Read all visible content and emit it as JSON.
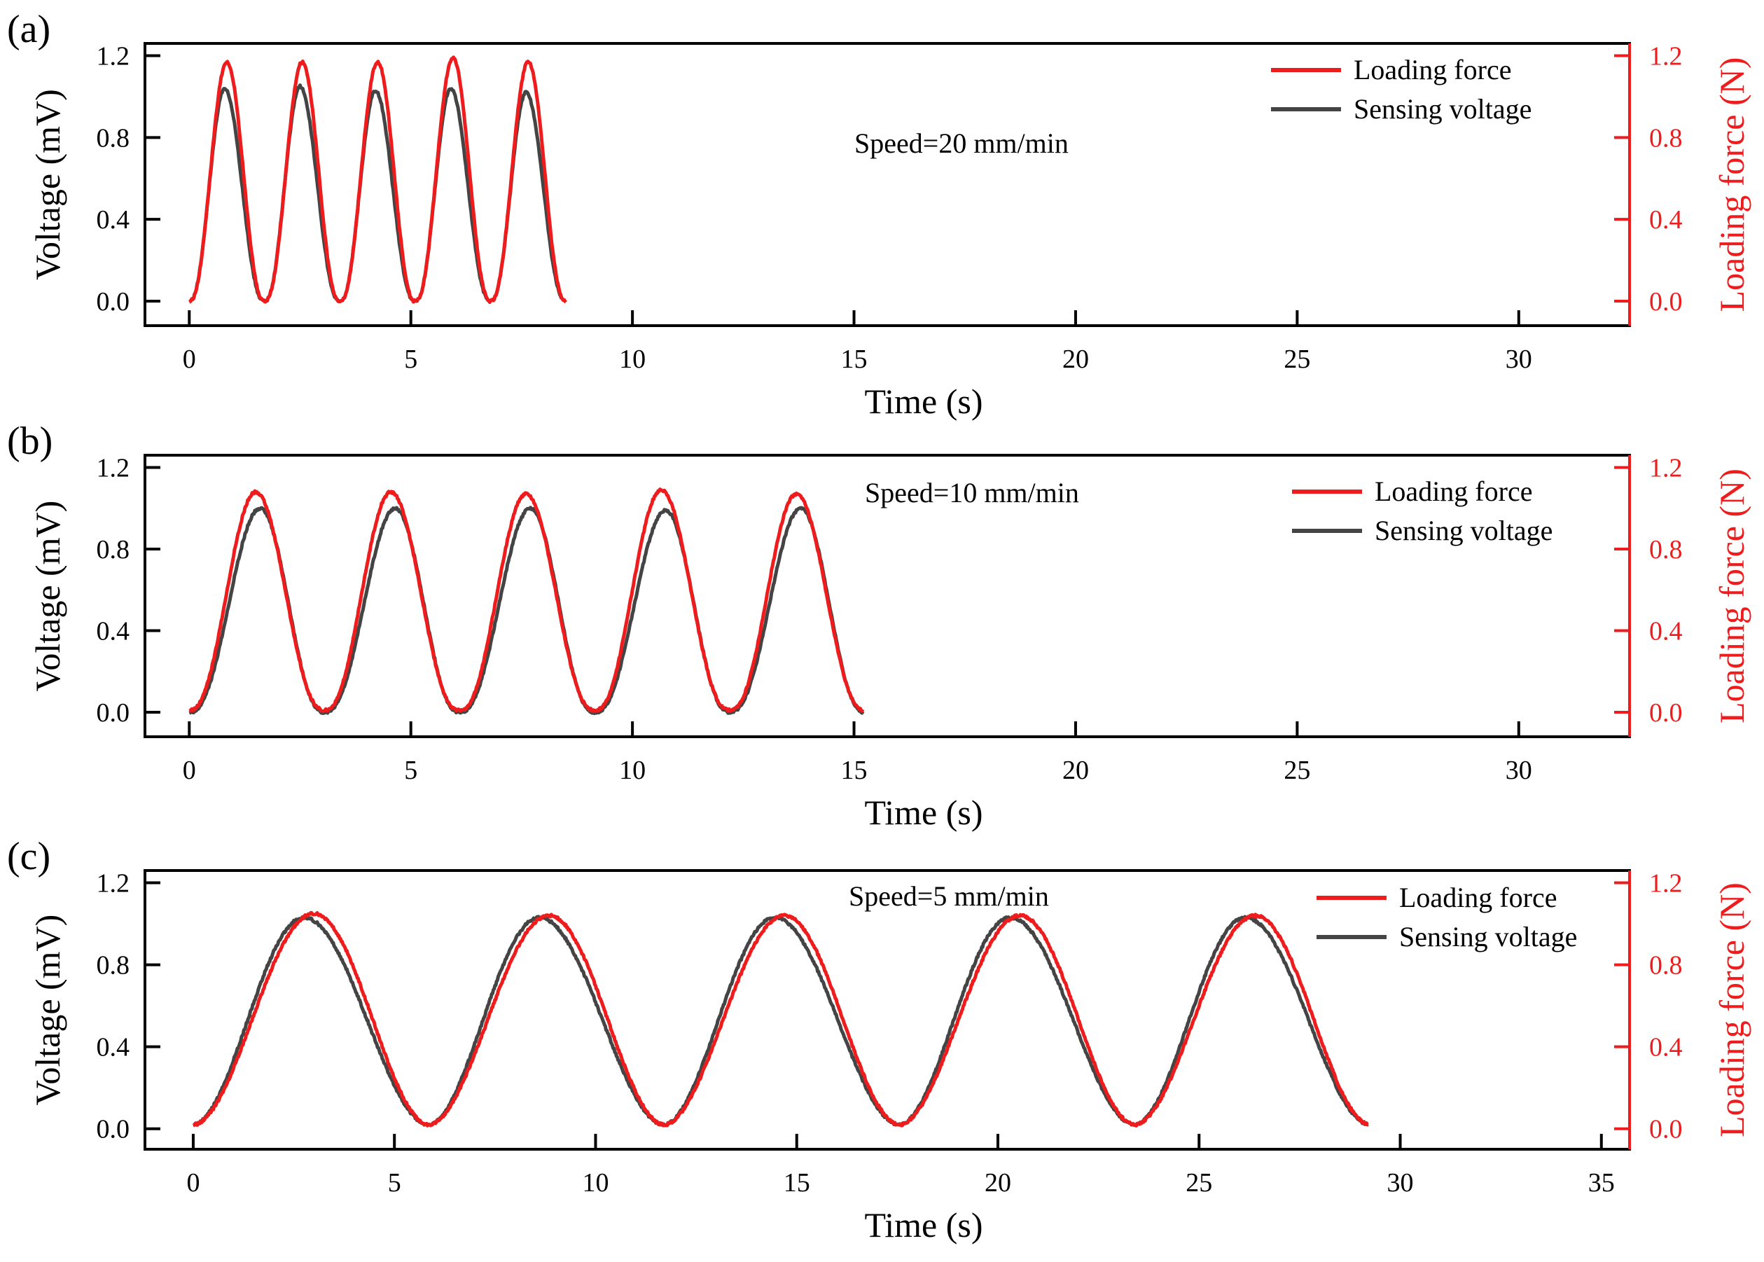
{
  "colors": {
    "loading": "#ee1c1c",
    "sensing": "#444444",
    "axis": "#000000"
  },
  "chart_data": [
    {
      "type": "line",
      "panel_label": "(a)",
      "annotation": "Speed=20  mm/min",
      "xlabel": "Time (s)",
      "ylabel": "Voltage (mV)",
      "y2label": "Loading force (N)",
      "xlim": [
        -1,
        32.5
      ],
      "ylim": [
        -0.12,
        1.26
      ],
      "xticks": [
        0,
        5,
        10,
        15,
        20,
        25,
        30
      ],
      "xtick_labels": [
        "0",
        "5",
        "10",
        "15",
        "20",
        "25",
        "30"
      ],
      "yticks": [
        0.0,
        0.4,
        0.8,
        1.2
      ],
      "ytick_labels": [
        "0.0",
        "0.4",
        "0.8",
        "1.2"
      ],
      "y2ticks": [
        0.0,
        0.4,
        0.8,
        1.2
      ],
      "y2tick_labels": [
        "0.0",
        "0.4",
        "0.8",
        "1.2"
      ],
      "legend_position": "top-right",
      "series": [
        {
          "name": "Loading force",
          "axis": "right",
          "start": 0.0,
          "end": 8.5,
          "period": 1.7,
          "peak_offset": 0.85,
          "peaks": [
            1.17,
            1.17,
            1.17,
            1.19,
            1.17
          ],
          "base": 0.0,
          "shape": 1.5
        },
        {
          "name": "Sensing voltage",
          "axis": "left",
          "start": 0.0,
          "end": 8.4,
          "period": 1.7,
          "peak_offset": 0.8,
          "peaks": [
            1.04,
            1.05,
            1.03,
            1.04,
            1.02
          ],
          "base": 0.0,
          "shape": 1.5
        }
      ]
    },
    {
      "type": "line",
      "panel_label": "(b)",
      "annotation": "Speed=10  mm/min",
      "xlabel": "Time (s)",
      "ylabel": "Voltage (mV)",
      "y2label": "Loading force (N)",
      "xlim": [
        -1,
        32.5
      ],
      "ylim": [
        -0.12,
        1.26
      ],
      "xticks": [
        0,
        5,
        10,
        15,
        20,
        25,
        30
      ],
      "xtick_labels": [
        "0",
        "5",
        "10",
        "15",
        "20",
        "25",
        "30"
      ],
      "yticks": [
        0.0,
        0.4,
        0.8,
        1.2
      ],
      "ytick_labels": [
        "0.0",
        "0.4",
        "0.8",
        "1.2"
      ],
      "y2ticks": [
        0.0,
        0.4,
        0.8,
        1.2
      ],
      "y2tick_labels": [
        "0.0",
        "0.4",
        "0.8",
        "1.2"
      ],
      "legend_position": "top-right",
      "series": [
        {
          "name": "Loading force",
          "axis": "right",
          "start": 0.0,
          "end": 15.2,
          "period": 3.05,
          "peak_offset": 1.5,
          "peaks": [
            1.08,
            1.08,
            1.07,
            1.09,
            1.07
          ],
          "base": 0.01,
          "shape": 1.15
        },
        {
          "name": "Sensing voltage",
          "axis": "left",
          "start": 0.0,
          "end": 15.2,
          "period": 3.05,
          "peak_offset": 1.6,
          "peaks": [
            1.0,
            1.0,
            1.0,
            0.99,
            1.0
          ],
          "base": 0.0,
          "shape": 1.15
        }
      ]
    },
    {
      "type": "line",
      "panel_label": "(c)",
      "annotation": "Speed=5  mm/min",
      "xlabel": "Time (s)",
      "ylabel": "Voltage (mV)",
      "y2label": "Loading force (N)",
      "xlim": [
        -1.2,
        35.7
      ],
      "ylim": [
        -0.1,
        1.26
      ],
      "xticks": [
        0,
        5,
        10,
        15,
        20,
        25,
        30,
        35
      ],
      "xtick_labels": [
        "0",
        "5",
        "10",
        "15",
        "20",
        "25",
        "30",
        "35"
      ],
      "yticks": [
        0.0,
        0.4,
        0.8,
        1.2
      ],
      "ytick_labels": [
        "0.0",
        "0.4",
        "0.8",
        "1.2"
      ],
      "y2ticks": [
        0.0,
        0.4,
        0.8,
        1.2
      ],
      "y2tick_labels": [
        "0.0",
        "0.4",
        "0.8",
        "1.2"
      ],
      "legend_position": "top-right",
      "series": [
        {
          "name": "Loading force",
          "axis": "right",
          "start": 0.0,
          "end": 29.2,
          "period": 5.85,
          "peak_offset": 3.0,
          "peaks": [
            1.05,
            1.04,
            1.04,
            1.04,
            1.04
          ],
          "base": 0.02,
          "shape": 1.0
        },
        {
          "name": "Sensing voltage",
          "axis": "left",
          "start": 0.0,
          "end": 29.2,
          "period": 5.85,
          "peak_offset": 2.75,
          "peaks": [
            1.03,
            1.03,
            1.03,
            1.03,
            1.03
          ],
          "base": 0.02,
          "shape": 1.0
        }
      ]
    }
  ]
}
